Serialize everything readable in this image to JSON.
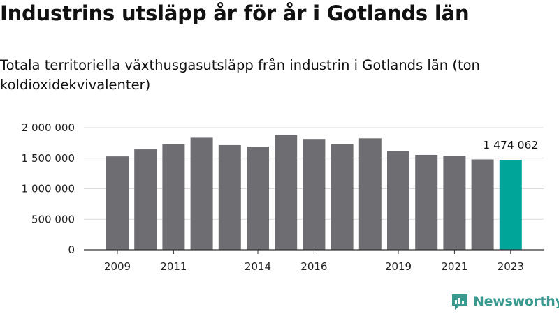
{
  "chart_data": {
    "type": "bar",
    "title": "Industrins utsläpp år för år i Gotlands län",
    "subtitle": "Totala territoriella växthusgasutsläpp från industrin i Gotlands län (ton koldioxidekvivalenter)",
    "categories": [
      "2009",
      "2010",
      "2011",
      "2012",
      "2013",
      "2014",
      "2015",
      "2016",
      "2017",
      "2018",
      "2019",
      "2020",
      "2021",
      "2022",
      "2023"
    ],
    "x_tick_labels": [
      "2009",
      "",
      "2011",
      "",
      "",
      "2014",
      "",
      "2016",
      "",
      "",
      "2019",
      "",
      "2021",
      "",
      "2023"
    ],
    "values": [
      1530000,
      1645000,
      1730000,
      1835000,
      1715000,
      1690000,
      1880000,
      1815000,
      1730000,
      1825000,
      1620000,
      1555000,
      1540000,
      1480000,
      1474062
    ],
    "ylim": [
      0,
      2000000
    ],
    "y_ticks": [
      0,
      500000,
      1000000,
      1500000,
      2000000
    ],
    "y_tick_labels": [
      "0",
      "500 000",
      "1 000 000",
      "1 500 000",
      "2 000 000"
    ],
    "data_label": {
      "index": 14,
      "text": "1 474 062"
    },
    "grid": true,
    "colors": {
      "bar": "#6e6d71",
      "highlight": "#00a59a",
      "grid": "#dcdcdc",
      "axis": "#333333"
    }
  },
  "logo": {
    "text": "Newsworthy",
    "icon": "newsworthy-logo-icon",
    "color": "#3a9a8f"
  }
}
